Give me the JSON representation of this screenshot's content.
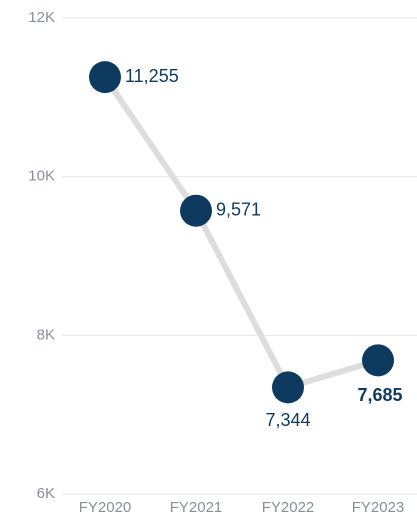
{
  "chart_data": {
    "type": "line",
    "categories": [
      "FY2020",
      "FY2021",
      "FY2022",
      "FY2023"
    ],
    "series": [
      {
        "name": null,
        "color": "#0f3a60",
        "line_color": "#dddddd",
        "values": [
          11255,
          9571,
          7344,
          7685
        ],
        "value_labels": [
          "11,255",
          "9,571",
          "7,344",
          "7,685"
        ]
      }
    ],
    "ylim": [
      6000,
      12000
    ],
    "yticks": [
      {
        "value": 6000,
        "label": "6K"
      },
      {
        "value": 8000,
        "label": "8K"
      },
      {
        "value": 10000,
        "label": "10K"
      },
      {
        "value": 12000,
        "label": "12K"
      }
    ],
    "grid": true
  }
}
